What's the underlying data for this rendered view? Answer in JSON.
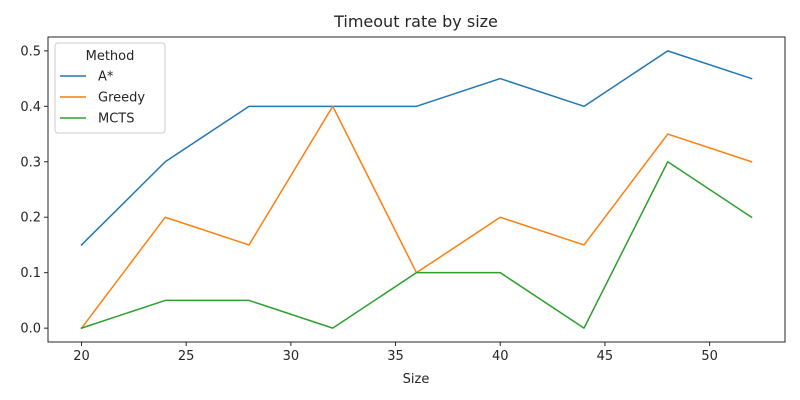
{
  "chart_data": {
    "type": "line",
    "title": "Timeout rate by size",
    "xlabel": "Size",
    "ylabel": "",
    "x": [
      20,
      24,
      28,
      32,
      36,
      40,
      44,
      48,
      52
    ],
    "xlim": [
      18.4,
      53.6
    ],
    "ylim": [
      -0.025,
      0.525
    ],
    "xticks": [
      20,
      25,
      30,
      35,
      40,
      45,
      50
    ],
    "yticks": [
      0.0,
      0.1,
      0.2,
      0.3,
      0.4,
      0.5
    ],
    "ytick_labels": [
      "0.0",
      "0.1",
      "0.2",
      "0.3",
      "0.4",
      "0.5"
    ],
    "grid": false,
    "legend": {
      "title": "Method",
      "placement": "top-left"
    },
    "series": [
      {
        "name": "A*",
        "color": "#1f77b4",
        "values": [
          0.15,
          0.3,
          0.4,
          0.4,
          0.4,
          0.45,
          0.4,
          0.5,
          0.45
        ]
      },
      {
        "name": "Greedy",
        "color": "#ff7f0e",
        "values": [
          0.0,
          0.2,
          0.15,
          0.4,
          0.1,
          0.2,
          0.15,
          0.35,
          0.3
        ]
      },
      {
        "name": "MCTS",
        "color": "#2ca02c",
        "values": [
          0.0,
          0.05,
          0.05,
          0.0,
          0.1,
          0.1,
          0.0,
          0.3,
          0.2
        ]
      }
    ]
  }
}
